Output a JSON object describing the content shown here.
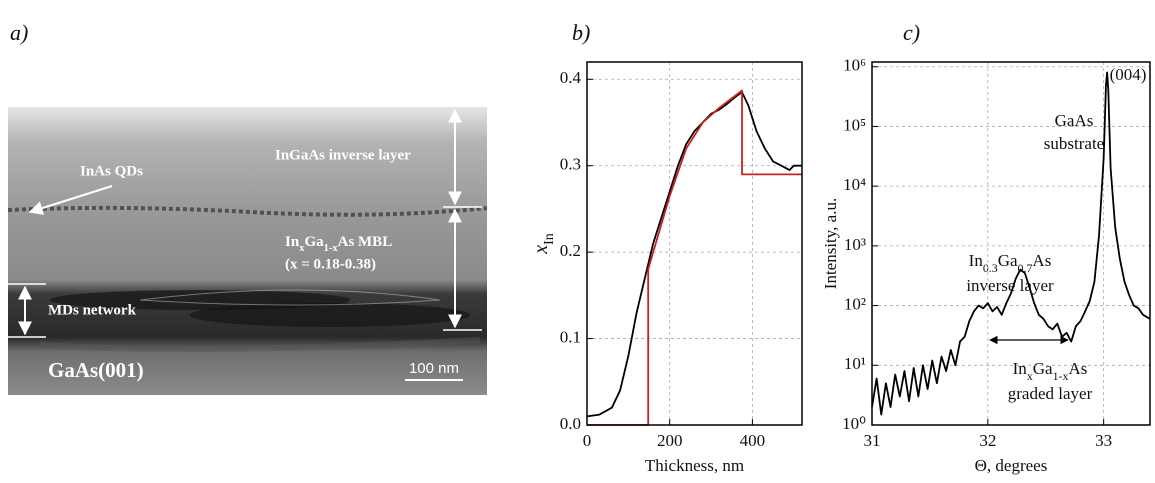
{
  "panel_labels": [
    "a)",
    "b)",
    "c)"
  ],
  "image": {
    "qds": "InAs QDs",
    "inverse": "InGaAs inverse layer",
    "mbl_parts": [
      "In",
      "x",
      "Ga",
      "1-x",
      "As MBL"
    ],
    "mbl_range": "(x = 0.18-0.38)",
    "mds": "MDs network",
    "substrate": "GaAs(001)",
    "scale": "100 nm"
  },
  "chart_data": [
    {
      "type": "line",
      "x_label": "Thickness, nm",
      "y_label_parts": [
        "x",
        "In"
      ],
      "xlim": [
        0,
        520
      ],
      "xticks": [
        0,
        200,
        400
      ],
      "ylim": [
        0,
        0.42
      ],
      "yticks": [
        {
          "value": 0,
          "label": "0.0"
        },
        0.1,
        0.2,
        0.3,
        0.4
      ],
      "grid": true,
      "series": [
        {
          "color": "#000000",
          "x": [
            0,
            30,
            60,
            80,
            100,
            120,
            140,
            160,
            180,
            200,
            220,
            240,
            260,
            280,
            300,
            320,
            340,
            360,
            375,
            390,
            410,
            430,
            450,
            470,
            490,
            500,
            520
          ],
          "values": [
            0.01,
            0.012,
            0.02,
            0.04,
            0.08,
            0.13,
            0.17,
            0.21,
            0.24,
            0.27,
            0.3,
            0.325,
            0.34,
            0.35,
            0.36,
            0.365,
            0.372,
            0.38,
            0.385,
            0.37,
            0.34,
            0.32,
            0.305,
            0.3,
            0.295,
            0.3,
            0.3
          ]
        },
        {
          "color": "#cc1f1f",
          "x": [
            0,
            148,
            148,
            160,
            200,
            240,
            280,
            320,
            375,
            375,
            520
          ],
          "values": [
            0,
            0,
            0.18,
            0.2,
            0.265,
            0.32,
            0.35,
            0.367,
            0.387,
            0.29,
            0.29
          ]
        }
      ]
    },
    {
      "type": "line",
      "log_y": true,
      "x_label": "Θ, degrees",
      "y_label": "Intensity, a.u.",
      "xlim": [
        31,
        33.4
      ],
      "xticks": [
        31,
        32,
        33
      ],
      "ylim": [
        1,
        1200000
      ],
      "yticks": [
        {
          "value": 1,
          "label": "10⁰"
        },
        {
          "value": 10,
          "label": "10¹"
        },
        {
          "value": 100,
          "label": "10²"
        },
        {
          "value": 1000,
          "label": "10³"
        },
        {
          "value": 10000,
          "label": "10⁴"
        },
        {
          "value": 100000,
          "label": "10⁵"
        },
        {
          "value": 1000000,
          "label": "10⁶"
        }
      ],
      "grid": true,
      "annotations": {
        "peak": "(004)",
        "gaas": "GaAs",
        "substrate": "substrate",
        "inverse_parts": [
          "In",
          "0.3",
          "Ga",
          "0.7",
          "As"
        ],
        "inverse": "inverse layer",
        "graded_parts": [
          "In",
          "x",
          "Ga",
          "1-x",
          "As"
        ],
        "graded": "graded layer"
      },
      "series": [
        {
          "color": "#000000",
          "x": [
            31.0,
            31.04,
            31.08,
            31.12,
            31.16,
            31.2,
            31.24,
            31.28,
            31.32,
            31.36,
            31.4,
            31.44,
            31.48,
            31.52,
            31.56,
            31.6,
            31.64,
            31.68,
            31.72,
            31.76,
            31.8,
            31.84,
            31.88,
            31.92,
            31.96,
            32.0,
            32.04,
            32.08,
            32.12,
            32.16,
            32.2,
            32.24,
            32.28,
            32.32,
            32.36,
            32.4,
            32.44,
            32.48,
            32.52,
            32.56,
            32.6,
            32.64,
            32.68,
            32.72,
            32.76,
            32.8,
            32.84,
            32.88,
            32.92,
            32.96,
            33.0,
            33.02,
            33.03,
            33.04,
            33.06,
            33.1,
            33.14,
            33.18,
            33.22,
            33.26,
            33.3,
            33.34,
            33.4
          ],
          "values": [
            2,
            6,
            1.5,
            5,
            2,
            7,
            3,
            8,
            2.5,
            9,
            3,
            10,
            4,
            12,
            5,
            14,
            8,
            18,
            10,
            25,
            30,
            55,
            80,
            100,
            90,
            110,
            80,
            95,
            70,
            110,
            160,
            280,
            400,
            350,
            200,
            110,
            70,
            60,
            45,
            40,
            50,
            30,
            35,
            25,
            45,
            55,
            80,
            120,
            250,
            1500,
            30000,
            500000,
            800000,
            400000,
            20000,
            2000,
            600,
            250,
            150,
            100,
            90,
            70,
            60
          ]
        }
      ]
    }
  ]
}
